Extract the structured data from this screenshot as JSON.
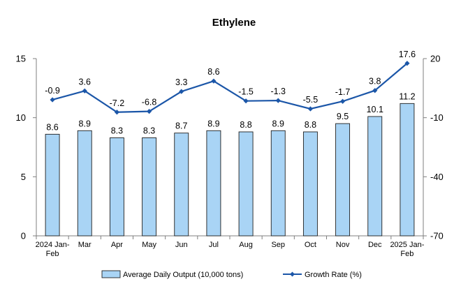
{
  "chart_data": {
    "type": "bar+line",
    "title": "Ethylene",
    "categories": [
      [
        "2024 Jan-",
        "Feb"
      ],
      [
        "Mar"
      ],
      [
        "Apr"
      ],
      [
        "May"
      ],
      [
        "Jun"
      ],
      [
        "Jul"
      ],
      [
        "Aug"
      ],
      [
        "Sep"
      ],
      [
        "Oct"
      ],
      [
        "Nov"
      ],
      [
        "Dec"
      ],
      [
        "2025 Jan-",
        "Feb"
      ]
    ],
    "series": [
      {
        "name": "Average Daily Output (10,000 tons)",
        "type": "bar",
        "axis": "left",
        "values": [
          8.6,
          8.9,
          8.3,
          8.3,
          8.7,
          8.9,
          8.8,
          8.9,
          8.8,
          9.5,
          10.1,
          11.2
        ],
        "labels": [
          "8.6",
          "8.9",
          "8.3",
          "8.3",
          "8.7",
          "8.9",
          "8.8",
          "8.9",
          "8.8",
          "9.5",
          "10.1",
          "11.2"
        ]
      },
      {
        "name": "Growth Rate (%)",
        "type": "line",
        "axis": "right",
        "values": [
          -0.9,
          3.6,
          -7.2,
          -6.8,
          3.3,
          8.6,
          -1.5,
          -1.3,
          -5.5,
          -1.7,
          3.8,
          17.6
        ],
        "labels": [
          "-0.9",
          "3.6",
          "-7.2",
          "-6.8",
          "3.3",
          "8.6",
          "-1.5",
          "-1.3",
          "-5.5",
          "-1.7",
          "3.8",
          "17.6"
        ]
      }
    ],
    "y_left": {
      "ylim": [
        0,
        15
      ],
      "ticks": [
        "0",
        "5",
        "10",
        "15"
      ]
    },
    "y_right": {
      "ylim": [
        -70,
        20
      ],
      "ticks": [
        "-70",
        "-40",
        "-10",
        "20"
      ]
    },
    "grid": false,
    "legend": "bottom",
    "colors": {
      "bar_fill": "#a9d4f5",
      "bar_stroke": "#1f1f1f",
      "line": "#1b56a8",
      "axis": "#7f7f7f"
    }
  }
}
